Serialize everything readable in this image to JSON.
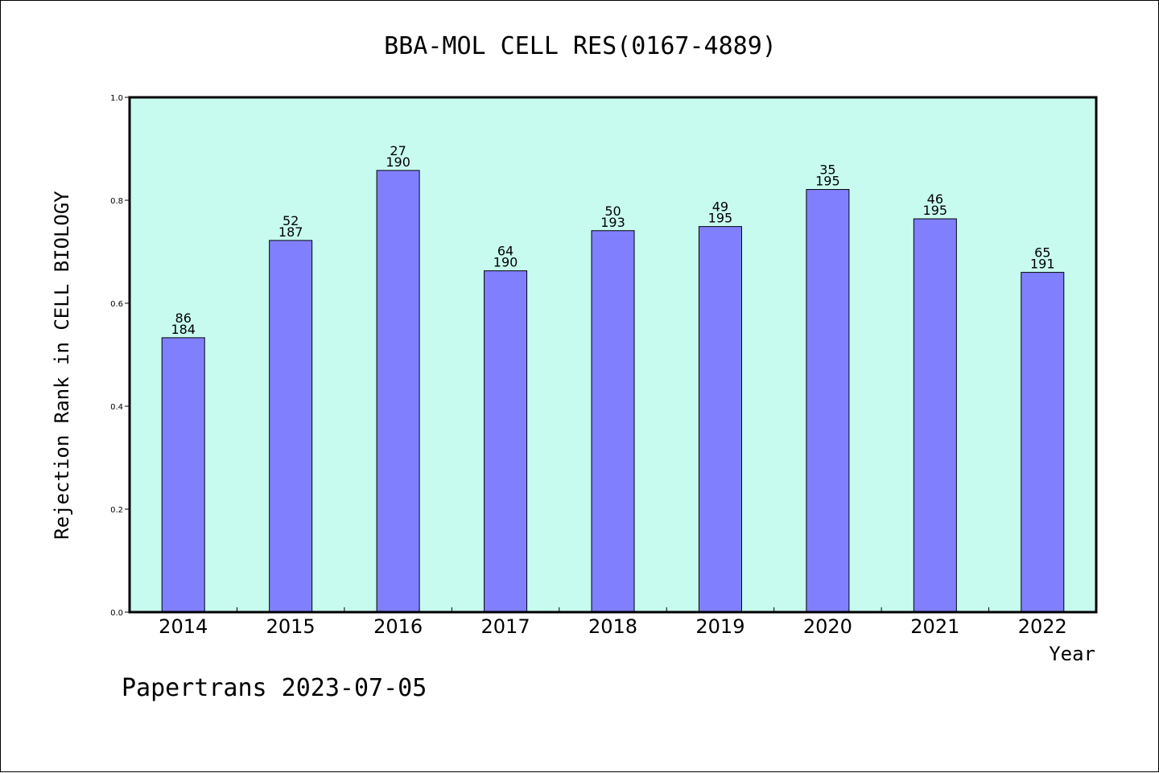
{
  "colors": {
    "plot_background": "#c8fbef",
    "bar_fill": "#8080ff",
    "bar_stroke": "#000000"
  },
  "footer_text": "Papertrans 2023-07-05",
  "chart_data": {
    "type": "bar",
    "title": "BBA-MOL CELL RES(0167-4889)",
    "xlabel": "Year",
    "ylabel": "Rejection Rank in CELL BIOLOGY",
    "ylim": [
      0,
      1.0
    ],
    "yticks": [
      "0.0",
      "0.2",
      "0.4",
      "0.6",
      "0.8",
      "1.0"
    ],
    "grid": false,
    "categories": [
      "2014",
      "2015",
      "2016",
      "2017",
      "2018",
      "2019",
      "2020",
      "2021",
      "2022"
    ],
    "values": [
      0.533,
      0.722,
      0.858,
      0.663,
      0.741,
      0.749,
      0.821,
      0.764,
      0.66
    ],
    "rank_labels": [
      "86",
      "52",
      "27",
      "64",
      "50",
      "49",
      "35",
      "46",
      "65"
    ],
    "total_labels": [
      "184",
      "187",
      "190",
      "190",
      "193",
      "195",
      "195",
      "195",
      "191"
    ]
  }
}
